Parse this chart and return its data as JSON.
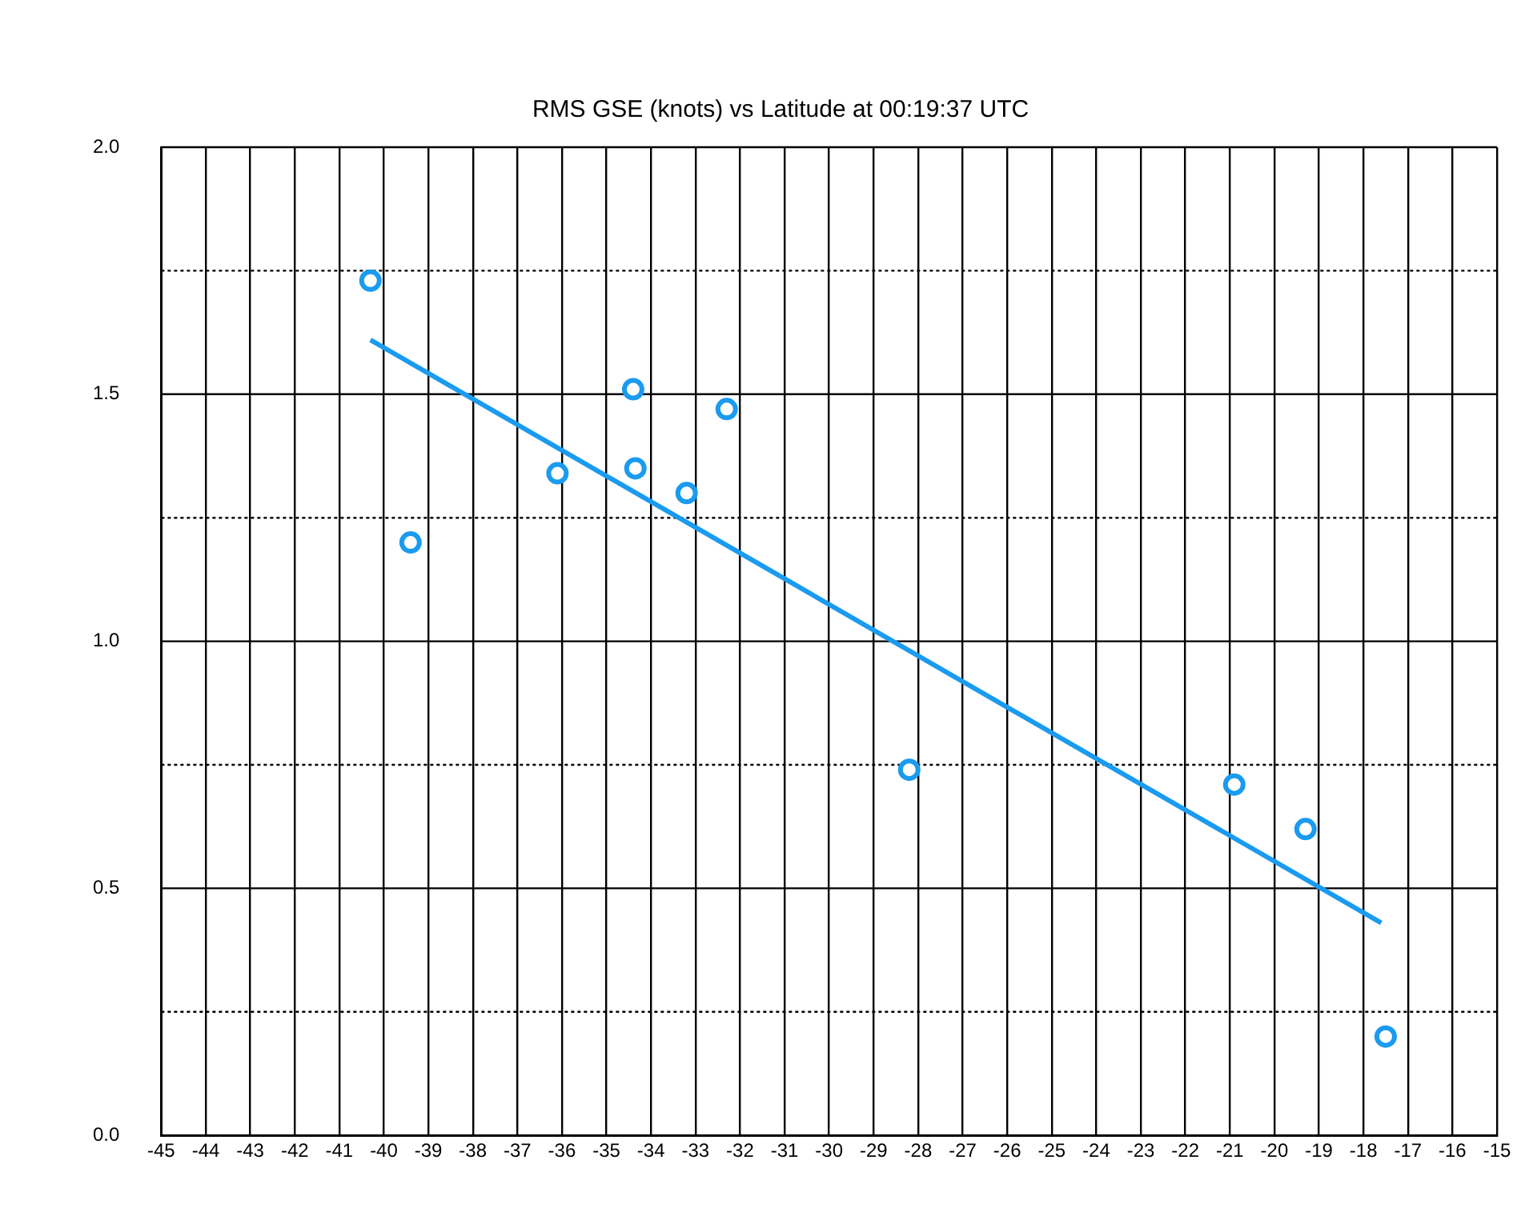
{
  "chart_data": {
    "type": "scatter",
    "title": "RMS GSE (knots) vs Latitude at 00:19:37 UTC",
    "x": [
      -40.3,
      -39.4,
      -36.1,
      -34.4,
      -34.35,
      -33.2,
      -32.3,
      -28.2,
      -20.9,
      -19.3,
      -17.5
    ],
    "series": [
      {
        "type": "scatter",
        "color": "#1a9bf0",
        "values": [
          1.73,
          1.2,
          1.34,
          1.51,
          1.35,
          1.3,
          1.47,
          0.74,
          0.71,
          0.62,
          0.2
        ]
      },
      {
        "type": "line",
        "color": "#1a9bf0",
        "marker": "none",
        "x": [
          -40.3,
          -17.6
        ],
        "values": [
          1.61,
          0.43
        ]
      }
    ],
    "xlim": [
      -45,
      -15
    ],
    "xticks": [
      -45,
      -44,
      -43,
      -42,
      -41,
      -40,
      -39,
      -38,
      -37,
      -36,
      -35,
      -34,
      -33,
      -32,
      -31,
      -30,
      -29,
      -28,
      -27,
      -26,
      -25,
      -24,
      -23,
      -22,
      -21,
      -20,
      -19,
      -18,
      -17,
      -16,
      -15
    ],
    "ylim": [
      0,
      2
    ],
    "yticks": [
      {
        "value": 0,
        "label": "0.0"
      },
      {
        "value": 0.25,
        "label": null
      },
      {
        "value": 0.5,
        "label": "0.5"
      },
      {
        "value": 0.75,
        "label": null
      },
      {
        "value": 1,
        "label": "1.0"
      },
      {
        "value": 1.25,
        "label": null
      },
      {
        "value": 1.5,
        "label": "1.5"
      },
      {
        "value": 1.75,
        "label": null
      },
      {
        "value": 2,
        "label": "2.0"
      }
    ],
    "grid": true,
    "legend": false,
    "marker": "circle"
  }
}
